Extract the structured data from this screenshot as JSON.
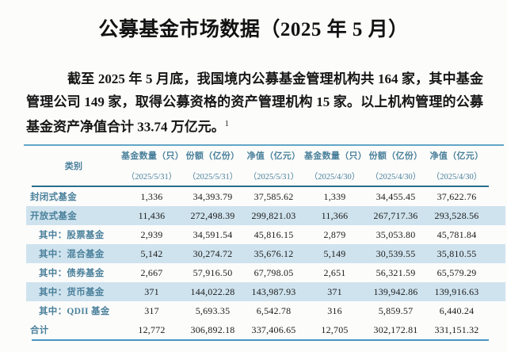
{
  "doc": {
    "title": "公募基金市场数据（2025 年 5 月）",
    "intro": "截至 2025 年 5 月底，我国境内公募基金管理机构共 164 家，其中基金管理公司 149 家，取得公募资格的资产管理机构 15 家。以上机构管理的公募基金资产净值合计 33.74 万亿元。",
    "footnote_mark": "1"
  },
  "table": {
    "headers": [
      {
        "title": "类别",
        "date": ""
      },
      {
        "title": "基金数量（只）",
        "date": "（2025/5/31）"
      },
      {
        "title": "份额（亿份）",
        "date": "（2025/5/31）"
      },
      {
        "title": "净值（亿元）",
        "date": "（2025/5/31）"
      },
      {
        "title": "基金数量（只）",
        "date": "（2025/4/30）"
      },
      {
        "title": "份额（亿份）",
        "date": "（2025/4/30）"
      },
      {
        "title": "净值（亿元）",
        "date": "（2025/4/30）"
      }
    ],
    "rows": [
      {
        "cells": [
          "封闭式基金",
          "1,336",
          "34,393.79",
          "37,585.62",
          "1,339",
          "34,455.45",
          "37,622.76"
        ]
      },
      {
        "cells": [
          "开放式基金",
          "11,436",
          "272,498.39",
          "299,821.03",
          "11,366",
          "267,717.36",
          "293,528.56"
        ]
      },
      {
        "cells": [
          "其中：股票基金",
          "2,939",
          "34,591.54",
          "45,816.15",
          "2,879",
          "35,053.80",
          "45,781.84"
        ]
      },
      {
        "cells": [
          "其中：混合基金",
          "5,142",
          "30,274.72",
          "35,676.12",
          "5,149",
          "30,539.55",
          "35,810.55"
        ]
      },
      {
        "cells": [
          "其中：债券基金",
          "2,667",
          "57,916.50",
          "67,798.05",
          "2,651",
          "56,321.59",
          "65,579.29"
        ]
      },
      {
        "cells": [
          "其中：货币基金",
          "371",
          "144,022.28",
          "143,987.93",
          "371",
          "139,942.86",
          "139,916.63"
        ]
      },
      {
        "cells": [
          "其中：QDII 基金",
          "317",
          "5,693.35",
          "6,542.78",
          "316",
          "5,859.57",
          "6,440.24"
        ]
      },
      {
        "cells": [
          "合计",
          "12,772",
          "306,892.18",
          "337,406.65",
          "12,705",
          "302,172.81",
          "331,151.32"
        ]
      }
    ]
  },
  "colors": {
    "accent_teal_text": "#4a809b",
    "row_highlight": "#cfe3ee",
    "rule_dark": "#2c6f8d",
    "rule_blue": "#4897c3",
    "separator_blue": "#63a6c7"
  }
}
